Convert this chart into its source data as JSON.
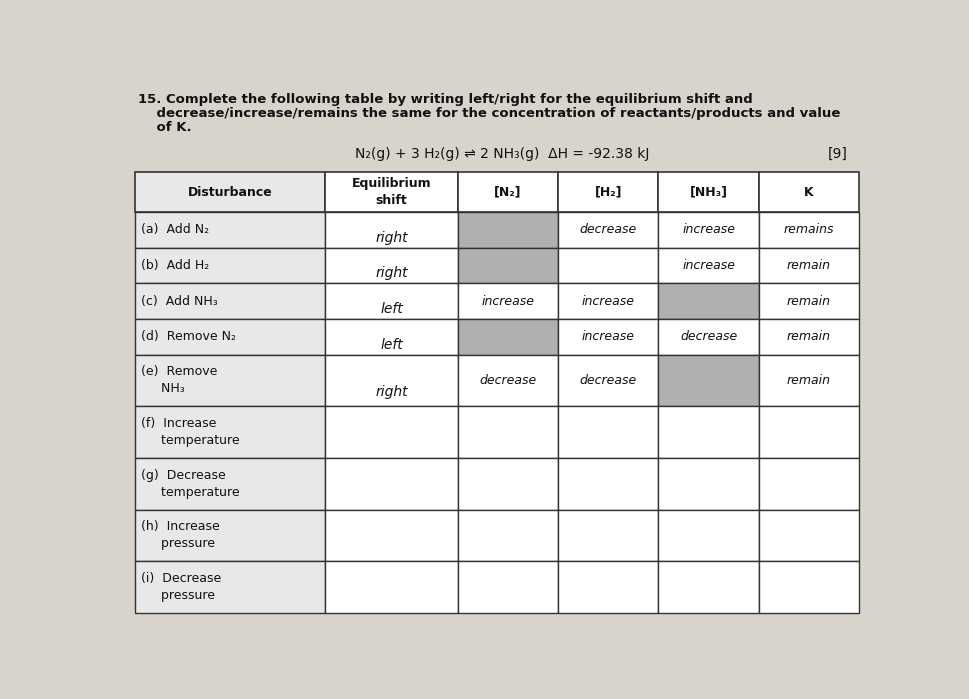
{
  "title_line1": "15. Complete the following table by writing left/right for the equilibrium shift and",
  "title_line2": "    decrease/increase/remains the same for the concentration of reactants/products and value",
  "title_line3": "    of K.",
  "equation": "N₂(g) + 3 H₂(g) ⇌ 2 NH₃(g)  ΔH = -92.38 kJ",
  "points": "[9]",
  "col_headers": [
    "Disturbance",
    "Equilibrium\nshift",
    "[N₂]",
    "[H₂]",
    "[NH₃]",
    "K"
  ],
  "rows": [
    {
      "disturbance": "(a)  Add N₂",
      "eq_shift": "right",
      "N2": "",
      "H2": "decrease",
      "NH3": "increase",
      "K": "remains",
      "shade_N2": true,
      "shade_NH3": false,
      "eq_shift_align": "bottom"
    },
    {
      "disturbance": "(b)  Add H₂",
      "eq_shift": "right",
      "N2": "",
      "H2": "",
      "NH3": "increase",
      "K": "remain",
      "shade_N2": true,
      "shade_NH3": false,
      "eq_shift_align": "bottom"
    },
    {
      "disturbance": "(c)  Add NH₃",
      "eq_shift": "left",
      "N2": "increase",
      "H2": "increase",
      "NH3": "",
      "K": "remain",
      "shade_N2": false,
      "shade_NH3": true,
      "eq_shift_align": "bottom"
    },
    {
      "disturbance": "(d)  Remove N₂",
      "eq_shift": "left",
      "N2": "",
      "H2": "increase",
      "NH3": "decrease",
      "K": "remain",
      "shade_N2": true,
      "shade_NH3": false,
      "eq_shift_align": "bottom"
    },
    {
      "disturbance": "(e)  Remove\n     NH₃",
      "eq_shift": "right",
      "N2": "decrease",
      "H2": "decrease",
      "NH3": "",
      "K": "remain",
      "shade_N2": false,
      "shade_NH3": true,
      "eq_shift_align": "bottom"
    },
    {
      "disturbance": "(f)  Increase\n     temperature",
      "eq_shift": "",
      "N2": "",
      "H2": "",
      "NH3": "",
      "K": "",
      "shade_N2": false,
      "shade_NH3": false,
      "eq_shift_align": "center"
    },
    {
      "disturbance": "(g)  Decrease\n     temperature",
      "eq_shift": "",
      "N2": "",
      "H2": "",
      "NH3": "",
      "K": "",
      "shade_N2": false,
      "shade_NH3": false,
      "eq_shift_align": "center"
    },
    {
      "disturbance": "(h)  Increase\n     pressure",
      "eq_shift": "",
      "N2": "",
      "H2": "",
      "NH3": "",
      "K": "",
      "shade_N2": false,
      "shade_NH3": false,
      "eq_shift_align": "center"
    },
    {
      "disturbance": "(i)  Decrease\n     pressure",
      "eq_shift": "",
      "N2": "",
      "H2": "",
      "NH3": "",
      "K": "",
      "shade_N2": false,
      "shade_NH3": false,
      "eq_shift_align": "center"
    }
  ],
  "dist_bg": "#e8e8e8",
  "shade_color": "#b0b0b0",
  "cell_bg": "#ffffff",
  "header_bg": "#ffffff",
  "text_color": "#111111",
  "hand_color": "#111111",
  "border_color": "#333333",
  "figbg_color": "#d8d4cc"
}
